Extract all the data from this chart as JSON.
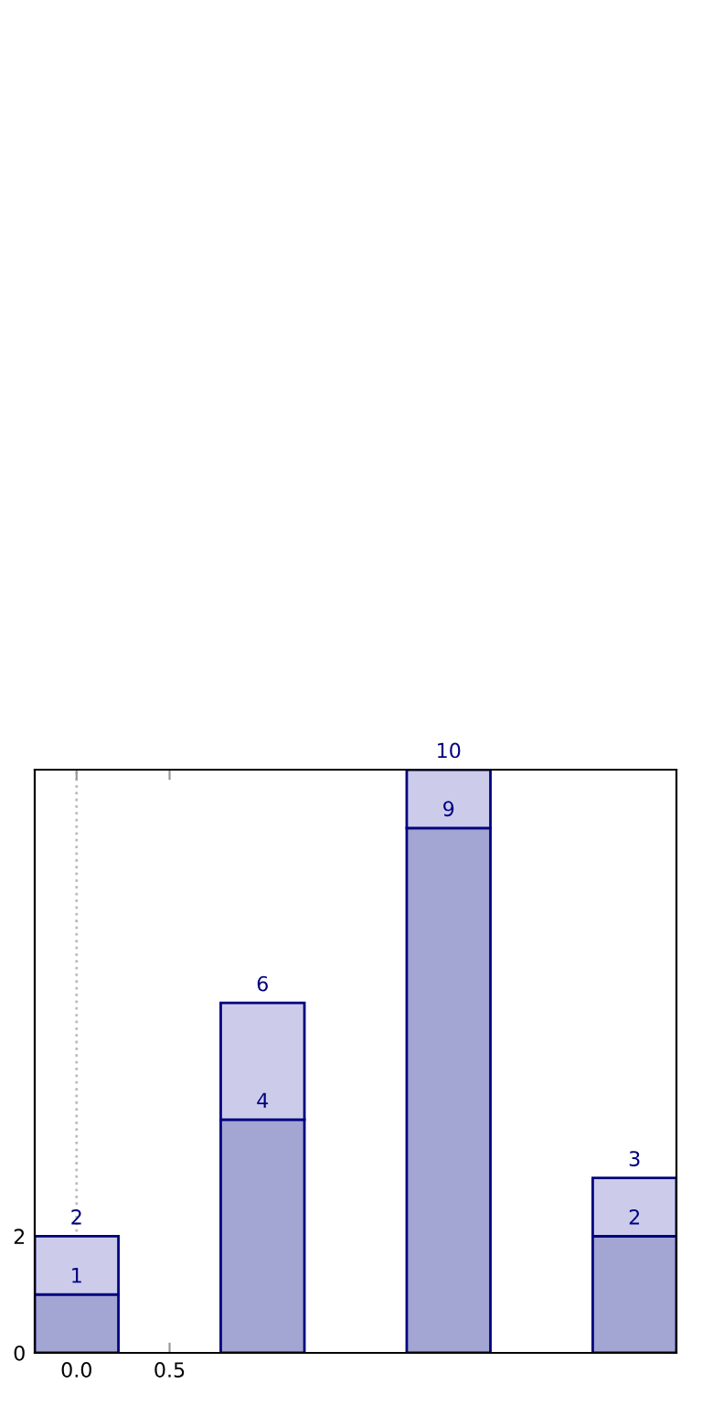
{
  "chart_data": {
    "type": "bar",
    "x": [
      0,
      1,
      2,
      3
    ],
    "stacked": true,
    "series": [
      {
        "color": "#a3a5d2",
        "values": [
          1,
          4,
          9,
          2
        ],
        "value_labels": [
          "1",
          "4",
          "9",
          "2"
        ]
      },
      {
        "color": "#ccccea",
        "values": [
          1,
          2,
          1,
          1
        ]
      }
    ],
    "totals": [
      "2",
      "6",
      "10",
      "3"
    ],
    "xlim": [
      -0.225,
      3.225
    ],
    "xticks": [
      {
        "value": 0,
        "label": "0.0"
      },
      {
        "value": 0.5,
        "label": "0.5"
      }
    ],
    "ylim": [
      0,
      10
    ],
    "yticks": [
      0,
      2
    ],
    "ref_lines": [
      {
        "axis": "x",
        "value": 0,
        "color": "#bbbbbb",
        "line_style": "dotted"
      }
    ],
    "grid": false,
    "legend": false
  }
}
